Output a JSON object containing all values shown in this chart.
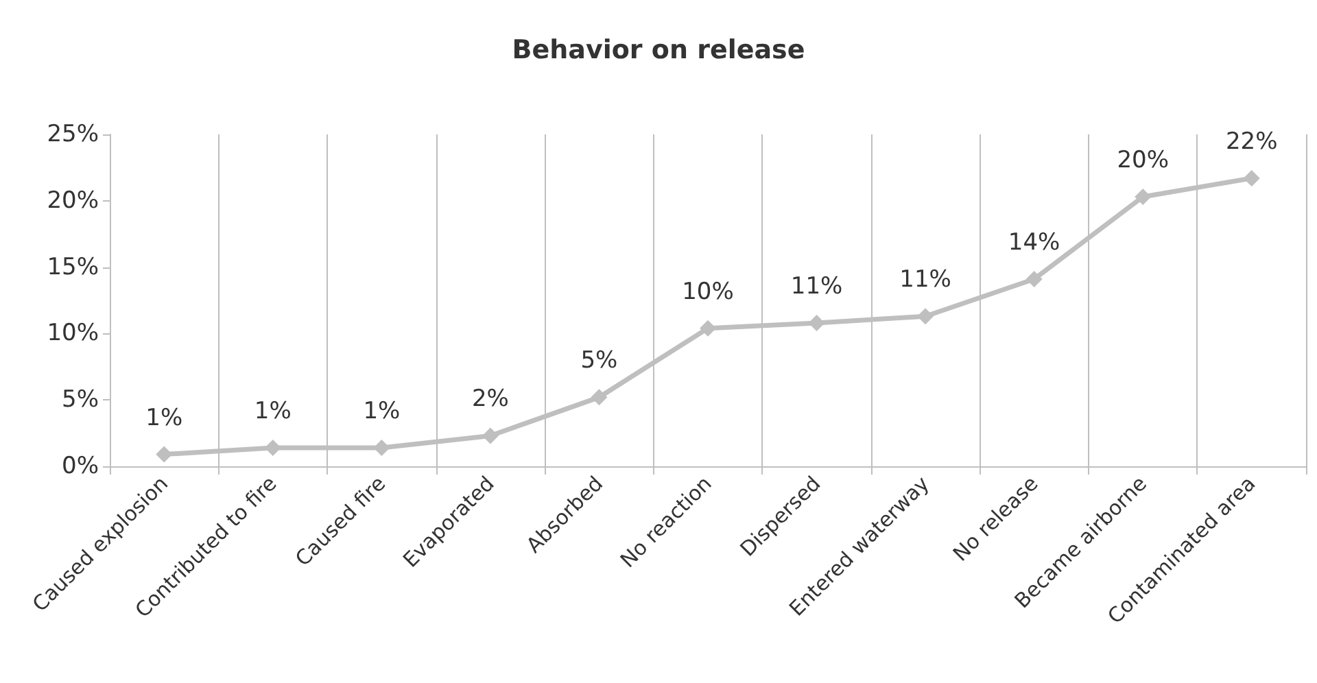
{
  "chart_data": {
    "type": "line",
    "title": "Behavior on release",
    "categories": [
      "Caused explosion",
      "Contributed to fire",
      "Caused fire",
      "Evaporated",
      "Absorbed",
      "No reaction",
      "Dispersed",
      "Entered waterway",
      "No release",
      "Became airborne",
      "Contaminated area"
    ],
    "series": [
      {
        "color": "#bfbfbf",
        "values": [
          0.9,
          1.4,
          1.4,
          2.3,
          5.2,
          10.4,
          10.8,
          11.3,
          14.1,
          20.3,
          21.7
        ],
        "value_labels": [
          "1%",
          "1%",
          "1%",
          "2%",
          "5%",
          "10%",
          "11%",
          "11%",
          "14%",
          "20%",
          "22%"
        ]
      }
    ],
    "ylim": [
      0,
      25
    ],
    "yticks": [
      {
        "value": 0,
        "label": "0%"
      },
      {
        "value": 5,
        "label": "5%"
      },
      {
        "value": 10,
        "label": "10%"
      },
      {
        "value": 15,
        "label": "15%"
      },
      {
        "value": 20,
        "label": "20%"
      },
      {
        "value": 25,
        "label": "25%"
      }
    ],
    "grid": "x",
    "marker": "diamond",
    "line_style": "solid"
  }
}
